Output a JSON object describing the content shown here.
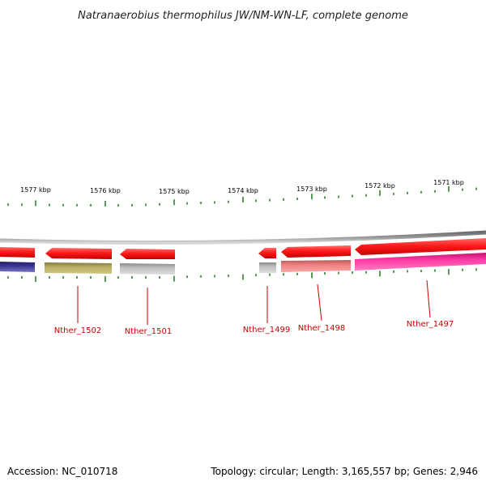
{
  "title": "Natranaerobius thermophilus JW/NM-WN-LF, complete genome",
  "footer": {
    "accession": "Accession: NC_010718",
    "summary": "Topology: circular; Length: 3,165,557 bp; Genes: 2,946"
  },
  "ruler_labels": [
    "1577 kbp",
    "1576 kbp",
    "1575 kbp",
    "1574 kbp",
    "1573 kbp",
    "1572 kbp",
    "1571 kbp"
  ],
  "gene_labels": [
    "Nther_1502",
    "Nther_1501",
    "Nther_1499",
    "Nther_1498",
    "Nther_1497"
  ],
  "colors": {
    "backbone": "#8a8a8a",
    "cds_arrow": "#ff1a1a",
    "tick": "#1a7a1a",
    "label_line": "#cc0000",
    "gene_1502": "#b9ae62",
    "gene_1501": "#c0c0c0",
    "gene_1499": "#bcbcbc",
    "gene_1498": "#f08080",
    "gene_1497": "#ff3aa6",
    "gene_left": "#3a3490"
  }
}
